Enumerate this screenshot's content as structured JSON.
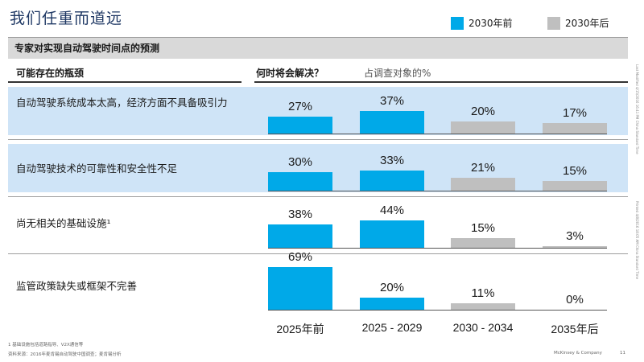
{
  "header": {
    "title": "我们任重而道远",
    "subtitle": "专家对实现自动驾驶时间点的预测"
  },
  "legend": [
    {
      "label": "2030年前",
      "color": "#00a9e8"
    },
    {
      "label": "2030年后",
      "color": "#bfbfbf"
    }
  ],
  "columns": {
    "obstacle_header": "可能存在的瓶颈",
    "when_header": "何时将会解决？",
    "when_sub": "占调查对象的%"
  },
  "chart_data": {
    "type": "bar",
    "categories": [
      "2025年前",
      "2025 - 2029",
      "2030 - 2034",
      "2035年后"
    ],
    "category_group": [
      "2030年前",
      "2030年前",
      "2030年后",
      "2030年后"
    ],
    "unit": "%",
    "rows": [
      {
        "label": "自动驾驶系统成本太高，经济方面不具备吸引力",
        "values": [
          27,
          37,
          20,
          17
        ],
        "highlighted": true
      },
      {
        "label": "自动驾驶技术的可靠性和安全性不足",
        "values": [
          30,
          33,
          21,
          15
        ],
        "highlighted": true
      },
      {
        "label": "尚无相关的基础设施¹",
        "values": [
          38,
          44,
          15,
          3
        ],
        "highlighted": false
      },
      {
        "label": "监管政策缺失或框架不完善",
        "values": [
          69,
          20,
          11,
          0
        ],
        "highlighted": false
      }
    ]
  },
  "footer": {
    "note": "1 基础设施包括道路指导、V2X通信等",
    "source": "资料来源：2016年麦肯锡自动驾驶中国调查；麦肯锡分析",
    "brand": "McKinsey & Company",
    "page": "11"
  },
  "side_notes": [
    "Last Modified 4/15/2016 16:41 PM China Standard Time",
    "Printed 4/8/2016 18:05 AM China Standard Time"
  ]
}
